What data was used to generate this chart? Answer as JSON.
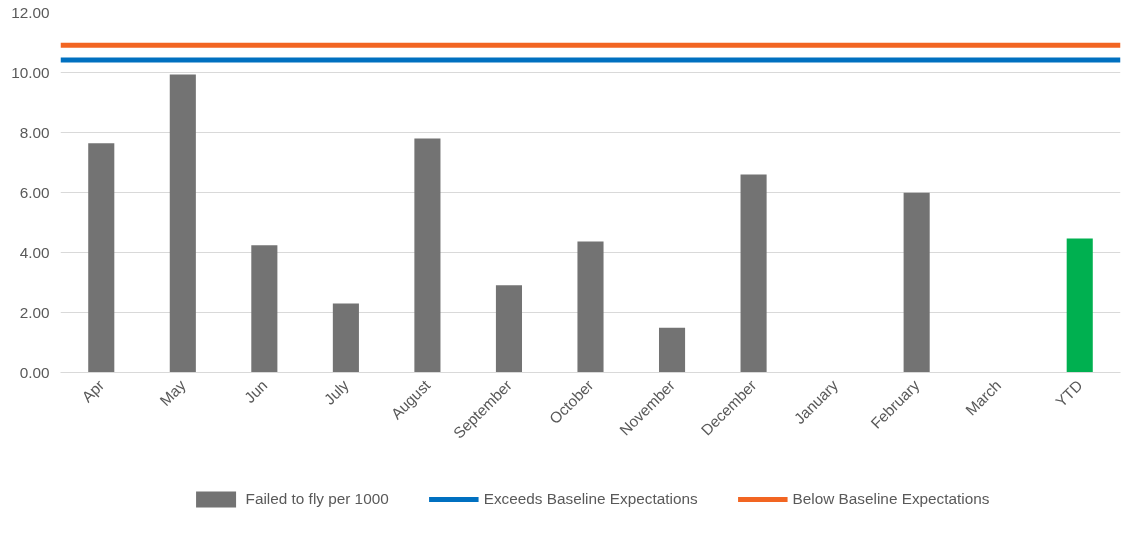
{
  "chart_data": {
    "type": "bar",
    "categories": [
      "Apr",
      "May",
      "Jun",
      "July",
      "August",
      "September",
      "October",
      "November",
      "December",
      "January",
      "February",
      "March",
      "YTD"
    ],
    "series": [
      {
        "name": "Failed to fly per 1000",
        "color": "#737373",
        "colors": [
          "#737373",
          "#737373",
          "#737373",
          "#737373",
          "#737373",
          "#737373",
          "#737373",
          "#737373",
          "#737373",
          "#737373",
          "#737373",
          "#737373",
          "#00b050"
        ],
        "values": [
          7.64,
          9.93,
          4.24,
          2.3,
          7.8,
          2.91,
          4.37,
          1.49,
          6.6,
          null,
          5.99,
          null,
          4.47
        ]
      }
    ],
    "ref_lines": [
      {
        "axis": "y",
        "value": 10.42,
        "label": "Exceeds Baseline Expectations",
        "color": "#0070c0"
      },
      {
        "axis": "y",
        "value": 10.91,
        "label": "Below Baseline Expectations",
        "color": "#f26522"
      }
    ],
    "ylim": [
      0,
      12
    ],
    "yticks": [
      {
        "value": 0,
        "label": "0.00"
      },
      {
        "value": 2,
        "label": "2.00"
      },
      {
        "value": 4,
        "label": "4.00"
      },
      {
        "value": 6,
        "label": "6.00"
      },
      {
        "value": 8,
        "label": "8.00"
      },
      {
        "value": 10,
        "label": "10.00"
      },
      {
        "value": 12,
        "label": "12.00"
      }
    ],
    "grid": "y",
    "legend": "bottom"
  }
}
